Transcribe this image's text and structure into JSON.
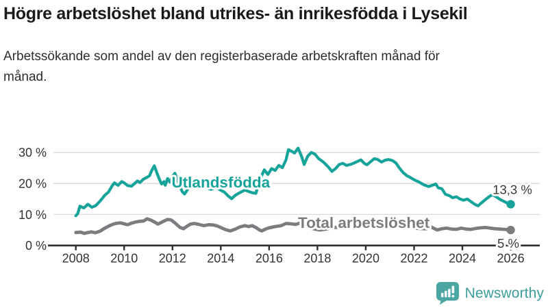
{
  "header": {
    "title": "Högre arbetslöshet bland utrikes- än inrikesfödda i Lysekil",
    "subtitle": "Arbetssökande som andel av den registerbaserade arbetskraften månad för månad."
  },
  "branding": {
    "name": "Newsworthy",
    "icon": "bar-chart-speech-bubble-icon",
    "icon_color": "#4aa6a2",
    "text_color": "#3b9e9a"
  },
  "colors": {
    "foreign_born_line": "#16a49a",
    "total_line": "#7c7c80",
    "gridline": "#dedede",
    "axis": "#2e2e2e",
    "tick_label": "#333333",
    "value_label": "#3a3a3a",
    "title_text": "#1a1a1a"
  },
  "chart_data": {
    "type": "line",
    "title": "Högre arbetslöshet bland utrikes- än inrikesfödda i Lysekil",
    "subtitle": "Arbetssökande som andel av den registerbaserade arbetskraften månad för månad.",
    "xlabel": "",
    "ylabel": "",
    "unit": "%",
    "x_range": [
      2008,
      2026
    ],
    "ylim": [
      0,
      32
    ],
    "grid": "horizontal-only",
    "legend": "inline-series-labels",
    "y_ticks": [
      {
        "value": 0,
        "label": "0 %"
      },
      {
        "value": 10,
        "label": "10 %"
      },
      {
        "value": 20,
        "label": "20 %"
      },
      {
        "value": 30,
        "label": "30 %"
      }
    ],
    "x_ticks": [
      {
        "value": 2008,
        "label": "2008"
      },
      {
        "value": 2010,
        "label": "2010"
      },
      {
        "value": 2012,
        "label": "2012"
      },
      {
        "value": 2014,
        "label": "2014"
      },
      {
        "value": 2016,
        "label": "2016"
      },
      {
        "value": 2018,
        "label": "2018"
      },
      {
        "value": 2020,
        "label": "2020"
      },
      {
        "value": 2022,
        "label": "2022"
      },
      {
        "value": 2024,
        "label": "2024"
      },
      {
        "value": 2026,
        "label": "2026"
      }
    ],
    "series": [
      {
        "name": "Utlandsfödda",
        "color": "#16a49a",
        "end_label": "13,3 %",
        "last_value": 13.3,
        "label_pos": {
          "x": 2014.0,
          "y": 20.45
        },
        "points": [
          [
            2008.0,
            9.6
          ],
          [
            2008.08,
            10.3
          ],
          [
            2008.17,
            12.7
          ],
          [
            2008.33,
            12.1
          ],
          [
            2008.5,
            13.3
          ],
          [
            2008.67,
            12.3
          ],
          [
            2008.83,
            12.9
          ],
          [
            2009.0,
            14.3
          ],
          [
            2009.2,
            16.2
          ],
          [
            2009.35,
            17.2
          ],
          [
            2009.5,
            19.2
          ],
          [
            2009.6,
            20.2
          ],
          [
            2009.75,
            19.4
          ],
          [
            2009.9,
            20.6
          ],
          [
            2010.0,
            20.2
          ],
          [
            2010.15,
            19.3
          ],
          [
            2010.3,
            19.1
          ],
          [
            2010.45,
            20.1
          ],
          [
            2010.55,
            20.8
          ],
          [
            2010.65,
            20.3
          ],
          [
            2010.8,
            21.4
          ],
          [
            2010.95,
            22.0
          ],
          [
            2011.05,
            22.5
          ],
          [
            2011.15,
            24.3
          ],
          [
            2011.25,
            25.7
          ],
          [
            2011.35,
            23.5
          ],
          [
            2011.45,
            21.5
          ],
          [
            2011.55,
            19.8
          ],
          [
            2011.65,
            20.6
          ],
          [
            2011.7,
            19.4
          ],
          [
            2011.8,
            21.6
          ],
          [
            2011.9,
            20.4
          ],
          [
            2012.0,
            22.3
          ],
          [
            2012.1,
            23.3
          ],
          [
            2012.25,
            20.3
          ],
          [
            2012.4,
            17.4
          ],
          [
            2012.5,
            16.6
          ],
          [
            2012.65,
            18.3
          ],
          [
            2012.8,
            19.3
          ],
          [
            2013.0,
            19.9
          ],
          [
            2013.2,
            19.2
          ],
          [
            2013.4,
            18.6
          ],
          [
            2013.6,
            18.1
          ],
          [
            2013.8,
            18.8
          ],
          [
            2014.0,
            17.8
          ],
          [
            2014.15,
            17.2
          ],
          [
            2014.3,
            16.0
          ],
          [
            2014.45,
            15.1
          ],
          [
            2014.6,
            16.2
          ],
          [
            2014.8,
            17.1
          ],
          [
            2015.0,
            17.9
          ],
          [
            2015.15,
            17.4
          ],
          [
            2015.3,
            17.0
          ],
          [
            2015.45,
            16.8
          ],
          [
            2015.6,
            20.9
          ],
          [
            2015.8,
            24.4
          ],
          [
            2015.95,
            22.9
          ],
          [
            2016.1,
            24.8
          ],
          [
            2016.25,
            24.2
          ],
          [
            2016.4,
            25.8
          ],
          [
            2016.55,
            25.1
          ],
          [
            2016.7,
            27.6
          ],
          [
            2016.8,
            30.9
          ],
          [
            2016.95,
            30.3
          ],
          [
            2017.05,
            29.8
          ],
          [
            2017.2,
            31.4
          ],
          [
            2017.35,
            28.6
          ],
          [
            2017.45,
            26.1
          ],
          [
            2017.6,
            28.8
          ],
          [
            2017.75,
            30.0
          ],
          [
            2017.9,
            29.4
          ],
          [
            2018.05,
            28.0
          ],
          [
            2018.25,
            26.9
          ],
          [
            2018.45,
            25.3
          ],
          [
            2018.6,
            23.9
          ],
          [
            2018.75,
            24.8
          ],
          [
            2018.9,
            26.1
          ],
          [
            2019.05,
            26.5
          ],
          [
            2019.2,
            25.8
          ],
          [
            2019.4,
            26.2
          ],
          [
            2019.6,
            26.9
          ],
          [
            2019.8,
            27.6
          ],
          [
            2019.95,
            26.4
          ],
          [
            2020.05,
            26.0
          ],
          [
            2020.2,
            27.0
          ],
          [
            2020.35,
            28.0
          ],
          [
            2020.5,
            27.7
          ],
          [
            2020.65,
            26.9
          ],
          [
            2020.8,
            27.5
          ],
          [
            2020.95,
            27.7
          ],
          [
            2021.1,
            27.4
          ],
          [
            2021.25,
            26.6
          ],
          [
            2021.4,
            24.9
          ],
          [
            2021.55,
            23.5
          ],
          [
            2021.7,
            22.5
          ],
          [
            2021.85,
            21.9
          ],
          [
            2022.0,
            21.2
          ],
          [
            2022.2,
            20.5
          ],
          [
            2022.4,
            19.6
          ],
          [
            2022.6,
            19.0
          ],
          [
            2022.75,
            19.4
          ],
          [
            2022.9,
            19.8
          ],
          [
            2023.0,
            18.6
          ],
          [
            2023.15,
            18.3
          ],
          [
            2023.3,
            16.5
          ],
          [
            2023.45,
            16.1
          ],
          [
            2023.6,
            15.4
          ],
          [
            2023.75,
            15.7
          ],
          [
            2023.9,
            15.0
          ],
          [
            2024.05,
            14.6
          ],
          [
            2024.2,
            15.0
          ],
          [
            2024.4,
            13.9
          ],
          [
            2024.55,
            13.1
          ],
          [
            2024.65,
            12.8
          ],
          [
            2024.8,
            13.8
          ],
          [
            2025.0,
            15.1
          ],
          [
            2025.15,
            16.0
          ],
          [
            2025.25,
            16.3
          ],
          [
            2025.4,
            15.7
          ],
          [
            2025.55,
            14.9
          ],
          [
            2025.7,
            14.3
          ],
          [
            2025.85,
            13.7
          ],
          [
            2026.0,
            13.3
          ]
        ]
      },
      {
        "name": "Total arbetslöshet",
        "color": "#7c7c80",
        "end_label": "5 %",
        "last_value": 5.0,
        "label_pos": {
          "x": 2019.92,
          "y": 7.43
        },
        "points": [
          [
            2008.0,
            4.2
          ],
          [
            2008.2,
            4.3
          ],
          [
            2008.35,
            3.9
          ],
          [
            2008.5,
            4.2
          ],
          [
            2008.65,
            4.4
          ],
          [
            2008.8,
            4.1
          ],
          [
            2009.0,
            4.6
          ],
          [
            2009.2,
            5.6
          ],
          [
            2009.4,
            6.4
          ],
          [
            2009.55,
            6.9
          ],
          [
            2009.7,
            7.2
          ],
          [
            2009.85,
            7.3
          ],
          [
            2010.0,
            7.0
          ],
          [
            2010.15,
            6.7
          ],
          [
            2010.3,
            7.2
          ],
          [
            2010.5,
            7.6
          ],
          [
            2010.65,
            7.8
          ],
          [
            2010.8,
            7.9
          ],
          [
            2010.95,
            8.6
          ],
          [
            2011.1,
            8.2
          ],
          [
            2011.25,
            7.6
          ],
          [
            2011.4,
            6.9
          ],
          [
            2011.6,
            7.7
          ],
          [
            2011.8,
            8.4
          ],
          [
            2011.95,
            8.2
          ],
          [
            2012.1,
            7.3
          ],
          [
            2012.3,
            5.9
          ],
          [
            2012.45,
            5.4
          ],
          [
            2012.6,
            6.2
          ],
          [
            2012.75,
            6.9
          ],
          [
            2012.9,
            7.1
          ],
          [
            2013.1,
            6.8
          ],
          [
            2013.3,
            6.4
          ],
          [
            2013.5,
            6.7
          ],
          [
            2013.7,
            6.6
          ],
          [
            2013.85,
            6.3
          ],
          [
            2014.0,
            5.8
          ],
          [
            2014.2,
            5.1
          ],
          [
            2014.4,
            4.7
          ],
          [
            2014.6,
            5.3
          ],
          [
            2014.8,
            6.0
          ],
          [
            2015.0,
            6.4
          ],
          [
            2015.15,
            6.1
          ],
          [
            2015.3,
            6.4
          ],
          [
            2015.45,
            5.8
          ],
          [
            2015.6,
            5.0
          ],
          [
            2015.7,
            4.7
          ],
          [
            2015.85,
            5.3
          ],
          [
            2016.0,
            5.7
          ],
          [
            2016.25,
            6.1
          ],
          [
            2016.5,
            6.4
          ],
          [
            2016.7,
            7.1
          ],
          [
            2016.9,
            7.0
          ],
          [
            2017.1,
            6.8
          ],
          [
            2017.3,
            7.3
          ],
          [
            2017.5,
            6.4
          ],
          [
            2017.7,
            5.6
          ],
          [
            2017.9,
            5.3
          ],
          [
            2018.1,
            5.0
          ],
          [
            2018.35,
            5.3
          ],
          [
            2018.6,
            5.7
          ],
          [
            2018.8,
            5.9
          ],
          [
            2019.0,
            6.1
          ],
          [
            2019.3,
            5.9
          ],
          [
            2019.6,
            6.1
          ],
          [
            2019.9,
            6.3
          ],
          [
            2020.2,
            7.0
          ],
          [
            2020.4,
            7.4
          ],
          [
            2020.7,
            7.2
          ],
          [
            2021.0,
            6.9
          ],
          [
            2021.3,
            6.4
          ],
          [
            2021.6,
            6.0
          ],
          [
            2021.9,
            5.7
          ],
          [
            2022.2,
            5.5
          ],
          [
            2022.5,
            5.4
          ],
          [
            2022.7,
            6.0
          ],
          [
            2022.95,
            5.0
          ],
          [
            2023.15,
            5.4
          ],
          [
            2023.35,
            5.6
          ],
          [
            2023.55,
            5.3
          ],
          [
            2023.75,
            5.2
          ],
          [
            2023.95,
            5.6
          ],
          [
            2024.15,
            5.3
          ],
          [
            2024.35,
            5.2
          ],
          [
            2024.55,
            5.5
          ],
          [
            2024.75,
            5.7
          ],
          [
            2024.95,
            5.8
          ],
          [
            2025.15,
            5.6
          ],
          [
            2025.35,
            5.4
          ],
          [
            2025.55,
            5.3
          ],
          [
            2025.75,
            5.2
          ],
          [
            2025.9,
            5.1
          ],
          [
            2026.0,
            5.0
          ]
        ]
      }
    ]
  }
}
